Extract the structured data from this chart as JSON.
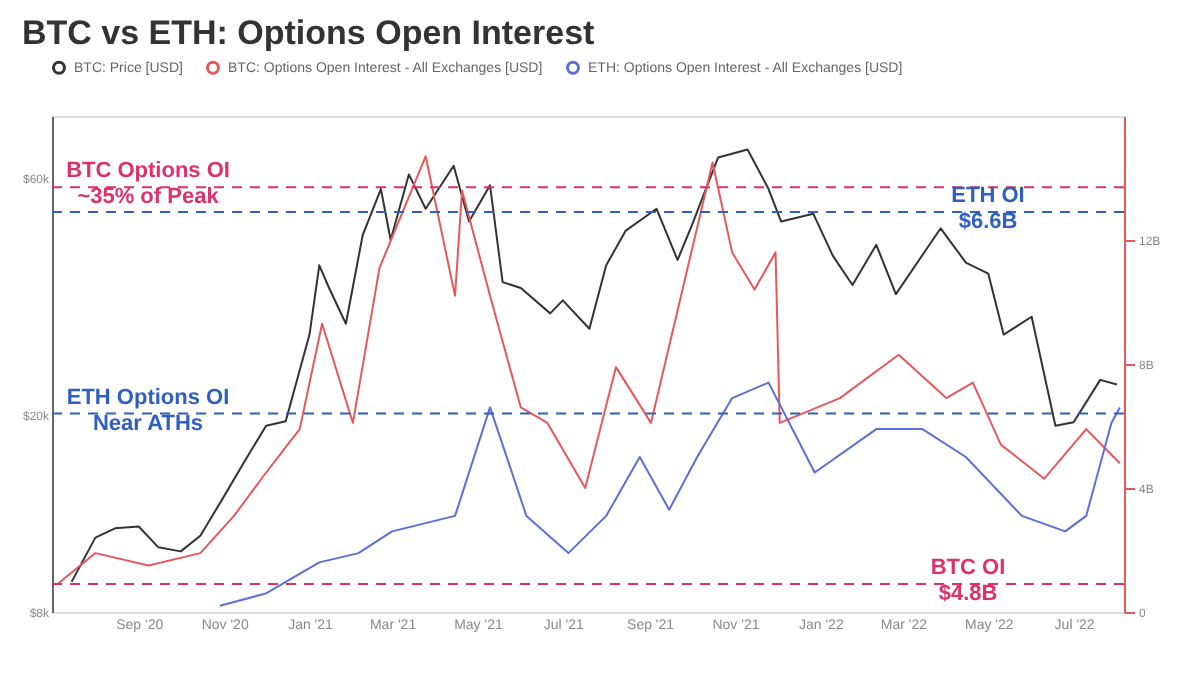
{
  "chart_data": {
    "type": "line",
    "title": "BTC vs ETH: Options Open Interest",
    "xlim": [
      "2020-07-01",
      "2022-08-06"
    ],
    "xticks": [
      {
        "value": "2020-09",
        "label": "Sep '20"
      },
      {
        "value": "2020-11",
        "label": "Nov '20"
      },
      {
        "value": "2021-01",
        "label": "Jan '21"
      },
      {
        "value": "2021-03",
        "label": "Mar '21"
      },
      {
        "value": "2021-05",
        "label": "May '21"
      },
      {
        "value": "2021-07",
        "label": "Jul '21"
      },
      {
        "value": "2021-09",
        "label": "Sep '21"
      },
      {
        "value": "2021-11",
        "label": "Nov '21"
      },
      {
        "value": "2022-01",
        "label": "Jan '22"
      },
      {
        "value": "2022-03",
        "label": "Mar '22"
      },
      {
        "value": "2022-05",
        "label": "May '22"
      },
      {
        "value": "2022-07",
        "label": "Jul '22"
      }
    ],
    "log": "y",
    "ylim": [
      8000,
      80000
    ],
    "yticks": [
      {
        "value": 8000,
        "label": "$8k"
      },
      {
        "value": 20000,
        "label": "$20k"
      },
      {
        "value": 60000,
        "label": "$60k"
      }
    ],
    "y2lim": [
      0,
      16
    ],
    "y2ticks": [
      {
        "value": 0,
        "label": "0"
      },
      {
        "value": 4,
        "label": "4B"
      },
      {
        "value": 8,
        "label": "8B"
      },
      {
        "value": 12,
        "label": "12B"
      }
    ],
    "grid": false,
    "legend": "top left",
    "marker": "none",
    "line_style": "solid",
    "series": [
      {
        "name": "BTC: Price [USD]",
        "color": "#333333",
        "x": [
          "2020-07-15",
          "2020-08-01",
          "2020-08-15",
          "2020-09-01",
          "2020-09-15",
          "2020-10-01",
          "2020-10-15",
          "2020-11-01",
          "2020-11-15",
          "2020-12-01",
          "2020-12-15",
          "2021-01-01",
          "2021-01-08",
          "2021-01-15",
          "2021-01-27",
          "2021-02-08",
          "2021-02-21",
          "2021-02-28",
          "2021-03-13",
          "2021-03-25",
          "2021-04-14",
          "2021-04-25",
          "2021-05-10",
          "2021-05-19",
          "2021-06-01",
          "2021-06-22",
          "2021-07-01",
          "2021-07-20",
          "2021-08-01",
          "2021-08-15",
          "2021-09-06",
          "2021-09-21",
          "2021-10-01",
          "2021-10-20",
          "2021-11-10",
          "2021-11-25",
          "2021-12-04",
          "2021-12-27",
          "2022-01-10",
          "2022-01-24",
          "2022-02-10",
          "2022-02-24",
          "2022-03-28",
          "2022-04-15",
          "2022-05-01",
          "2022-05-12",
          "2022-06-01",
          "2022-06-18",
          "2022-07-01",
          "2022-07-20",
          "2022-08-01"
        ],
        "values": [
          9200,
          11300,
          11800,
          11900,
          10800,
          10600,
          11400,
          13700,
          16000,
          19000,
          19400,
          29000,
          40000,
          36000,
          30500,
          46000,
          57000,
          45000,
          61000,
          52000,
          63500,
          49000,
          58000,
          37000,
          36000,
          32000,
          34000,
          29800,
          40000,
          47000,
          52000,
          41000,
          48000,
          66000,
          68500,
          57000,
          49000,
          50800,
          41800,
          36500,
          44000,
          35000,
          47500,
          40500,
          38500,
          29000,
          31500,
          19000,
          19300,
          23500,
          23000
        ]
      },
      {
        "name": "BTC: Options Open Interest - All Exchanges [USD]",
        "color": "#e8585a",
        "axis": "y2",
        "x": [
          "2020-07-05",
          "2020-08-01",
          "2020-09-08",
          "2020-10-15",
          "2020-11-08",
          "2020-12-01",
          "2020-12-25",
          "2021-01-10",
          "2021-02-01",
          "2021-02-20",
          "2021-03-25",
          "2021-04-15",
          "2021-04-20",
          "2021-05-10",
          "2021-06-01",
          "2021-06-20",
          "2021-07-17",
          "2021-08-08",
          "2021-09-02",
          "2021-10-16",
          "2021-10-30",
          "2021-11-15",
          "2021-11-30",
          "2021-12-03",
          "2022-01-15",
          "2022-02-26",
          "2022-04-01",
          "2022-04-20",
          "2022-05-10",
          "2022-06-10",
          "2022-07-10",
          "2022-08-03"
        ],
        "values": [
          0.9,
          1.9,
          1.5,
          1.9,
          3.1,
          4.5,
          5.9,
          9.3,
          6.1,
          11.1,
          14.7,
          10.2,
          13.6,
          10.2,
          6.6,
          6.1,
          4.0,
          7.9,
          6.1,
          14.5,
          11.6,
          10.4,
          11.6,
          6.1,
          6.9,
          8.3,
          6.9,
          7.4,
          5.4,
          4.3,
          5.9,
          4.8
        ]
      },
      {
        "name": "ETH: Options Open Interest - All Exchanges [USD]",
        "color": "#5b6fd6",
        "axis": "y2",
        "x": [
          "2020-10-29",
          "2020-12-01",
          "2021-01-08",
          "2021-02-05",
          "2021-03-01",
          "2021-04-15",
          "2021-05-10",
          "2021-06-05",
          "2021-07-05",
          "2021-08-01",
          "2021-08-25",
          "2021-09-15",
          "2021-10-05",
          "2021-10-30",
          "2021-11-25",
          "2021-12-28",
          "2022-02-10",
          "2022-03-15",
          "2022-04-15",
          "2022-05-25",
          "2022-06-25",
          "2022-07-10",
          "2022-07-28",
          "2022-08-03"
        ],
        "values": [
          0.2,
          0.6,
          1.6,
          1.9,
          2.6,
          3.1,
          6.6,
          3.1,
          1.9,
          3.1,
          5.0,
          3.3,
          5.0,
          6.9,
          7.4,
          4.5,
          5.9,
          5.9,
          5.0,
          3.1,
          2.6,
          3.1,
          6.1,
          6.6
        ]
      }
    ],
    "ref_lines": [
      {
        "axis": "y2",
        "value": 13.7,
        "color": "#e0306a",
        "line_style": "dashed"
      },
      {
        "axis": "y2",
        "value": 6.4,
        "color": "#2f5fc0",
        "line_style": "dashed"
      },
      {
        "axis": "y2",
        "value": 12.9,
        "color": "#2f5fc0",
        "line_style": "dashed"
      },
      {
        "axis": "y2",
        "value": 0.9,
        "color": "#e0306a",
        "line_style": "dashed"
      }
    ],
    "annotations": [
      "BTC Options OI\n~35% of Peak",
      "ETH Options OI\nNear ATHs",
      "ETH OI\n$6.6B",
      "BTC OI\n$4.8B"
    ]
  }
}
